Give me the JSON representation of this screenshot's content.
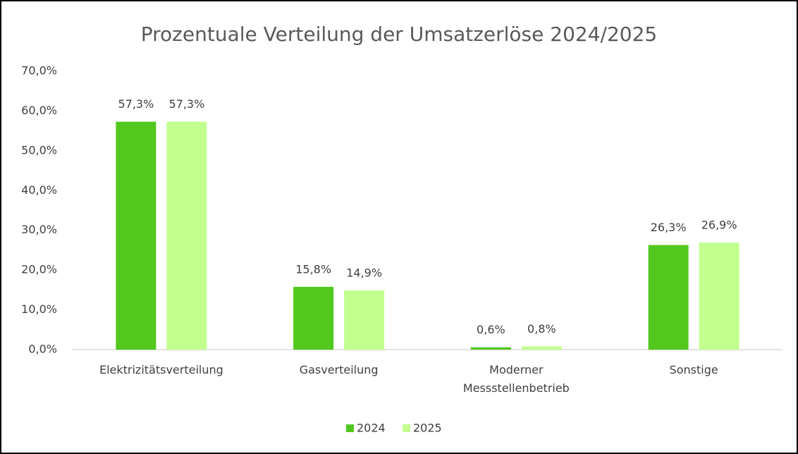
{
  "chart_data": {
    "type": "bar",
    "title": "Prozentuale Verteilung der Umsatzerlöse 2024/2025",
    "categories": [
      "Elektrizitätsverteilung",
      "Gasverteilung",
      "Moderner Messstellenbetrieb",
      "Sonstige"
    ],
    "series": [
      {
        "name": "2024",
        "color": "#52c81e",
        "values": [
          57.3,
          15.8,
          0.6,
          26.3
        ],
        "value_labels": [
          "57,3%",
          "15,8%",
          "0,6%",
          "26,3%"
        ]
      },
      {
        "name": "2025",
        "color": "#c2ff8f",
        "values": [
          57.3,
          14.9,
          0.8,
          26.9
        ],
        "value_labels": [
          "57,3%",
          "14,9%",
          "0,8%",
          "26,9%"
        ]
      }
    ],
    "ylim": [
      0,
      70
    ],
    "yticks": [
      {
        "value": 0,
        "label": "0,0%"
      },
      {
        "value": 10,
        "label": "10,0%"
      },
      {
        "value": 20,
        "label": "20,0%"
      },
      {
        "value": 30,
        "label": "30,0%"
      },
      {
        "value": 40,
        "label": "40,0%"
      },
      {
        "value": 50,
        "label": "50,0%"
      },
      {
        "value": 60,
        "label": "60,0%"
      },
      {
        "value": 70,
        "label": "70,0%"
      }
    ],
    "grid": false,
    "legend": "bottom"
  }
}
